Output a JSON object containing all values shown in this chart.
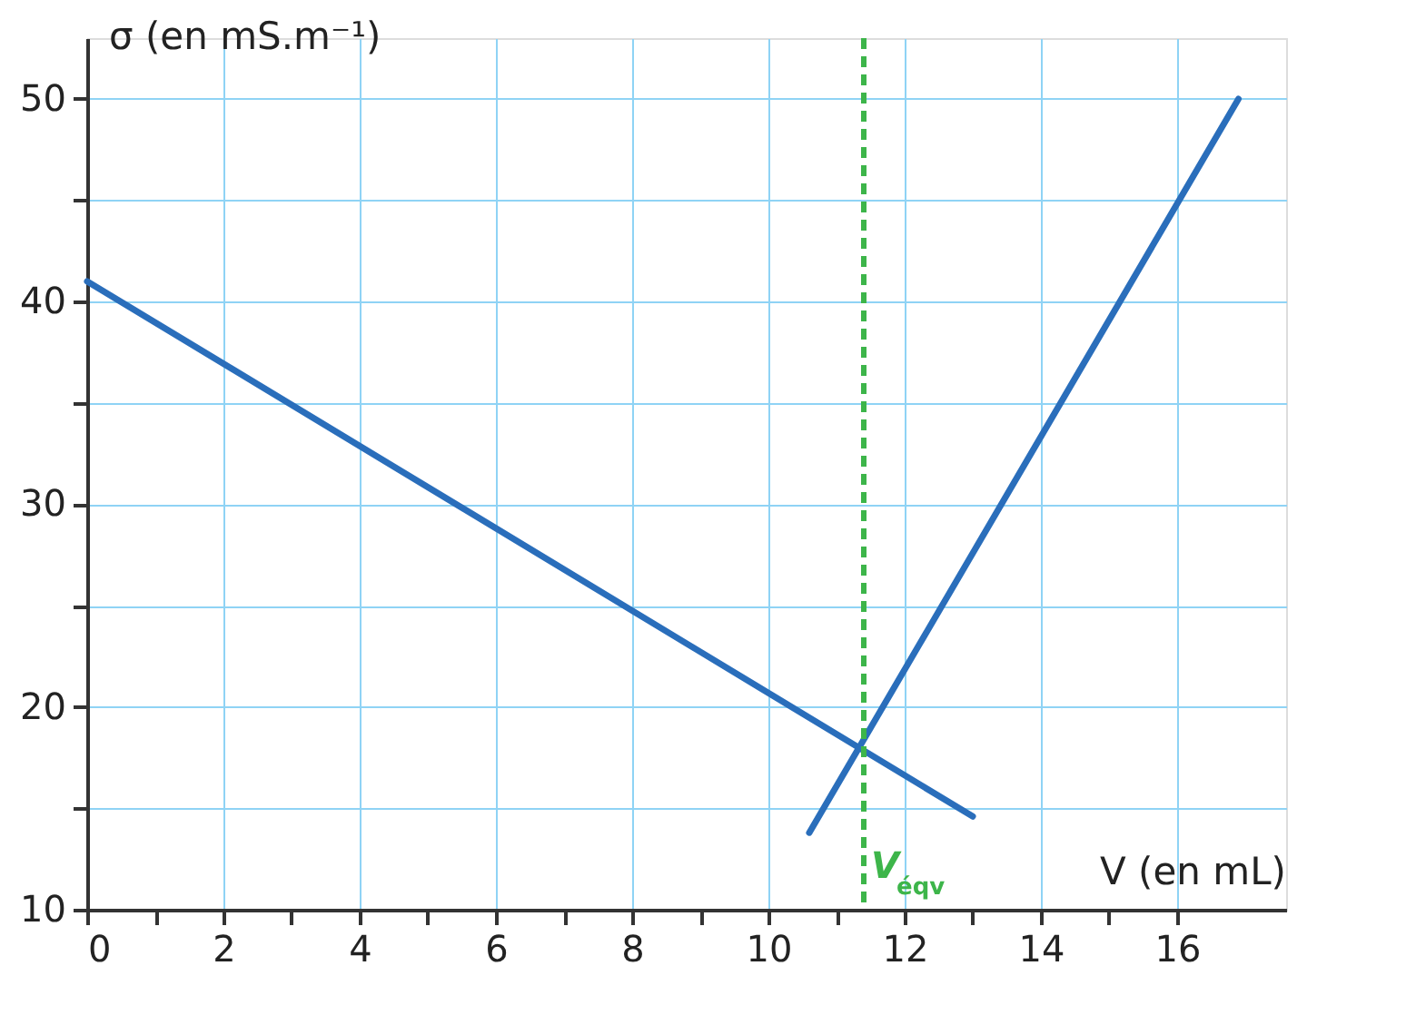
{
  "chart_data": {
    "type": "line",
    "xlabel": "V (en mL)",
    "ylabel": "σ (en mS.m⁻¹)",
    "series": [
      {
        "color": "#2a6ebb",
        "x": [
          0,
          13.0
        ],
        "values": [
          41,
          14.6
        ]
      },
      {
        "color": "#2a6ebb",
        "x": [
          10.6,
          16.9
        ],
        "values": [
          13.8,
          50
        ]
      }
    ],
    "xlim": [
      0,
      17.6
    ],
    "ylim": [
      10,
      53
    ],
    "xticks": [
      0,
      {
        "value": 1,
        "label": null
      },
      2,
      {
        "value": 3,
        "label": null
      },
      4,
      {
        "value": 5,
        "label": null
      },
      6,
      {
        "value": 7,
        "label": null
      },
      8,
      {
        "value": 9,
        "label": null
      },
      10,
      {
        "value": 11,
        "label": null
      },
      12,
      {
        "value": 13,
        "label": null
      },
      14,
      {
        "value": 15,
        "label": null
      },
      16
    ],
    "yticks": [
      10,
      {
        "value": 15,
        "label": null
      },
      20,
      {
        "value": 25,
        "label": null
      },
      30,
      {
        "value": 35,
        "label": null
      },
      40,
      {
        "value": 45,
        "label": null
      },
      50
    ],
    "ref_lines": [
      {
        "axis": "x",
        "value": 11.4,
        "label": "V$_{éqv}$",
        "color": "#3db54a",
        "line_style": "dashed"
      }
    ],
    "grid": true,
    "marker": "none",
    "line_style": "solid"
  }
}
